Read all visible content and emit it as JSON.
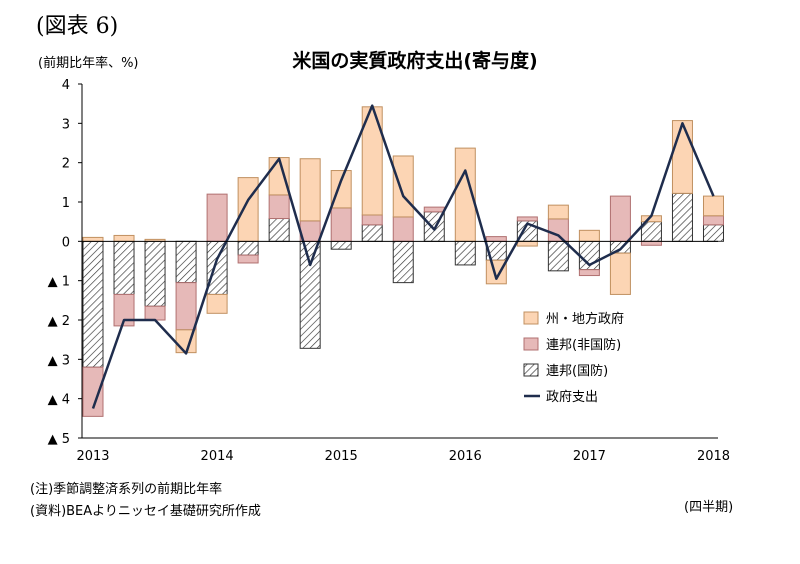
{
  "figure_label": "(図表 6)",
  "unit_label": "(前期比年率、%)",
  "notes": [
    "(注)季節調整済系列の前期比年率",
    "(資料)BEAよりニッセイ基礎研究所作成"
  ],
  "period_label": "(四半期)",
  "colors": {
    "state_local": "#fcd5b4",
    "state_local_border": "#c09060",
    "federal_nondefense": "#e6b9b8",
    "federal_nondefense_border": "#b07070",
    "federal_defense_hatch": "#333333",
    "total_line": "#1f2d4d"
  },
  "chart_data": {
    "type": "bar",
    "stacked": true,
    "title": "米国の実質政府支出(寄与度)",
    "ylim": [
      -5,
      4
    ],
    "yticks": [
      4,
      3,
      2,
      1,
      0,
      -1,
      -2,
      -3,
      -4,
      -5
    ],
    "ytick_labels": [
      "4",
      "3",
      "2",
      "1",
      "0",
      "▲ 1",
      "▲ 2",
      "▲ 3",
      "▲ 4",
      "▲ 5"
    ],
    "xtick_labels": [
      {
        "label": "2013",
        "index": 0
      },
      {
        "label": "2014",
        "index": 4
      },
      {
        "label": "2015",
        "index": 8
      },
      {
        "label": "2016",
        "index": 12
      },
      {
        "label": "2017",
        "index": 16
      },
      {
        "label": "2018",
        "index": 20
      }
    ],
    "quarters": [
      "2013Q1",
      "2013Q2",
      "2013Q3",
      "2013Q4",
      "2014Q1",
      "2014Q2",
      "2014Q3",
      "2014Q4",
      "2015Q1",
      "2015Q2",
      "2015Q3",
      "2015Q4",
      "2016Q1",
      "2016Q2",
      "2016Q3",
      "2016Q4",
      "2017Q1",
      "2017Q2",
      "2017Q3",
      "2017Q4",
      "2018Q1"
    ],
    "series": [
      {
        "name": "連邦(国防)",
        "key": "defense",
        "values": [
          -3.2,
          -1.35,
          -1.65,
          -1.05,
          -1.35,
          -0.35,
          0.58,
          -2.72,
          -0.2,
          0.42,
          -1.05,
          0.75,
          -0.6,
          -0.48,
          0.52,
          -0.75,
          -0.72,
          -0.3,
          0.5,
          1.22,
          0.42
        ]
      },
      {
        "name": "連邦(非国防)",
        "key": "nondefense",
        "values": [
          -1.25,
          -0.8,
          -0.35,
          -1.2,
          1.2,
          -0.2,
          0.6,
          0.52,
          0.85,
          0.25,
          0.62,
          0.12,
          0.0,
          0.12,
          0.1,
          0.57,
          -0.15,
          1.15,
          -0.1,
          0.0,
          0.23
        ]
      },
      {
        "name": "州・地方政府",
        "key": "state_local",
        "values": [
          0.1,
          0.15,
          0.05,
          -0.58,
          -0.48,
          1.62,
          0.95,
          1.58,
          0.95,
          2.75,
          1.55,
          0.0,
          2.37,
          -0.6,
          -0.12,
          0.35,
          0.28,
          -1.05,
          0.15,
          1.85,
          0.5
        ]
      },
      {
        "name": "政府支出",
        "key": "total",
        "type": "line",
        "values": [
          -4.25,
          -2.0,
          -2.0,
          -2.85,
          -0.45,
          1.05,
          2.1,
          -0.6,
          1.55,
          3.45,
          1.15,
          0.3,
          1.8,
          -0.95,
          0.45,
          0.15,
          -0.6,
          -0.2,
          0.65,
          3.0,
          1.15
        ]
      }
    ],
    "legend": {
      "placement": "lower-right inside plot",
      "items": [
        {
          "label": "州・地方政府",
          "key": "state_local"
        },
        {
          "label": "連邦(非国防)",
          "key": "nondefense"
        },
        {
          "label": "連邦(国防)",
          "key": "defense"
        },
        {
          "label": "政府支出",
          "key": "total"
        }
      ]
    },
    "grid": false
  }
}
